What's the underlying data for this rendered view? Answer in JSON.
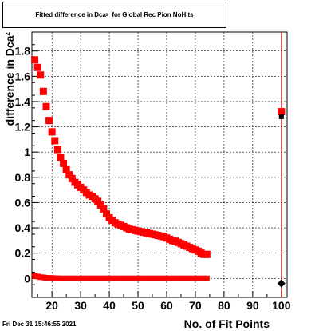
{
  "title": {
    "main": "Fitted difference in Dca",
    "subscript": "z",
    "suffix": "for Global Rec Pion NoHits"
  },
  "timestamp": "Fri Dec 31 15:46:55 2021",
  "colors": {
    "series_main": "#ff0000",
    "series_edge": "#ff0000",
    "marker_last": "#000000",
    "grid": "#000000"
  },
  "chart_data": {
    "type": "scatter",
    "title": "Fitted difference in Dca_z for Global Rec Pion NoHits",
    "xlabel": "No. of Fit Points",
    "ylabel": "difference in Dca_z",
    "xlim": [
      13,
      102
    ],
    "ylim": [
      -0.15,
      1.95
    ],
    "x_ticks": [
      20,
      30,
      40,
      50,
      60,
      70,
      80,
      90,
      100
    ],
    "y_ticks": [
      0,
      0.2,
      0.4,
      0.6,
      0.8,
      1,
      1.2,
      1.4,
      1.6,
      1.8
    ],
    "x_tick_labels": [
      "20",
      "30",
      "40",
      "50",
      "60",
      "70",
      "80",
      "90",
      "100"
    ],
    "y_tick_labels": [
      "0",
      "0.2",
      "0.4",
      "0.6",
      "0.8",
      "1",
      "1.2",
      "1.4",
      "1.6",
      "1.8"
    ],
    "grid": true,
    "series": [
      {
        "marker": "square",
        "x": [
          14,
          15,
          16,
          17,
          18,
          19,
          20,
          21,
          22,
          23,
          24,
          25,
          26,
          27,
          28,
          29,
          30,
          31,
          32,
          33,
          34,
          35,
          36,
          37,
          38,
          39,
          40,
          41,
          42,
          43,
          44,
          45,
          46,
          47,
          48,
          49,
          50,
          51,
          52,
          53,
          54,
          55,
          56,
          57,
          58,
          59,
          60,
          61,
          62,
          63,
          64,
          65,
          66,
          67,
          68,
          69,
          70,
          71,
          72,
          73,
          74,
          100
        ],
        "y": [
          1.73,
          1.67,
          1.61,
          1.48,
          1.36,
          1.25,
          1.16,
          1.09,
          1.02,
          0.96,
          0.91,
          0.86,
          0.82,
          0.79,
          0.76,
          0.74,
          0.72,
          0.7,
          0.68,
          0.66,
          0.65,
          0.63,
          0.61,
          0.58,
          0.55,
          0.51,
          0.48,
          0.46,
          0.44,
          0.43,
          0.42,
          0.41,
          0.4,
          0.39,
          0.385,
          0.38,
          0.375,
          0.37,
          0.365,
          0.36,
          0.355,
          0.35,
          0.345,
          0.34,
          0.335,
          0.33,
          0.32,
          0.31,
          0.3,
          0.295,
          0.285,
          0.275,
          0.265,
          0.255,
          0.245,
          0.235,
          0.225,
          0.215,
          0.2,
          0.19,
          0.19,
          1.32
        ]
      },
      {
        "marker": "square",
        "x": [
          14,
          15,
          16,
          17,
          18,
          19,
          20,
          21,
          22,
          23,
          24,
          25,
          26,
          27,
          28,
          29,
          30,
          31,
          32,
          33,
          34,
          35,
          36,
          37,
          38,
          39,
          40,
          41,
          42,
          43,
          44,
          45,
          46,
          47,
          48,
          49,
          50,
          51,
          52,
          53,
          54,
          55,
          56,
          57,
          58,
          59,
          60,
          61,
          62,
          63,
          64,
          65,
          66,
          67,
          68,
          69,
          70,
          71,
          72,
          73,
          74
        ],
        "y": [
          0.02,
          0.015,
          0.01,
          0.008,
          0.005,
          0.004,
          0.003,
          0.002,
          0.001,
          0.0,
          0.0,
          0.0,
          0.0,
          0.0,
          0.0,
          0.0,
          0.0,
          0.0,
          0.0,
          0.0,
          0.0,
          0.0,
          0.0,
          0.0,
          0.0,
          0.0,
          0.0,
          0.0,
          0.0,
          0.0,
          0.0,
          0.0,
          0.0,
          0.0,
          0.0,
          0.0,
          0.0,
          0.0,
          0.0,
          0.0,
          0.0,
          0.0,
          0.0,
          0.0,
          0.0,
          0.0,
          0.0,
          0.0,
          0.0,
          0.0,
          0.0,
          0.0,
          0.0,
          0.0,
          0.0,
          0.0,
          0.0,
          0.0,
          0.0,
          0.0,
          0.0
        ]
      }
    ],
    "extra_markers": [
      {
        "x": 100,
        "y": 1.28,
        "marker": "square",
        "color": "#000000"
      },
      {
        "x": 100,
        "y": -0.04,
        "marker": "diamond",
        "color": "#000000"
      }
    ],
    "vertical_line": {
      "x": 100,
      "from": -0.15,
      "to": 1.95
    }
  }
}
